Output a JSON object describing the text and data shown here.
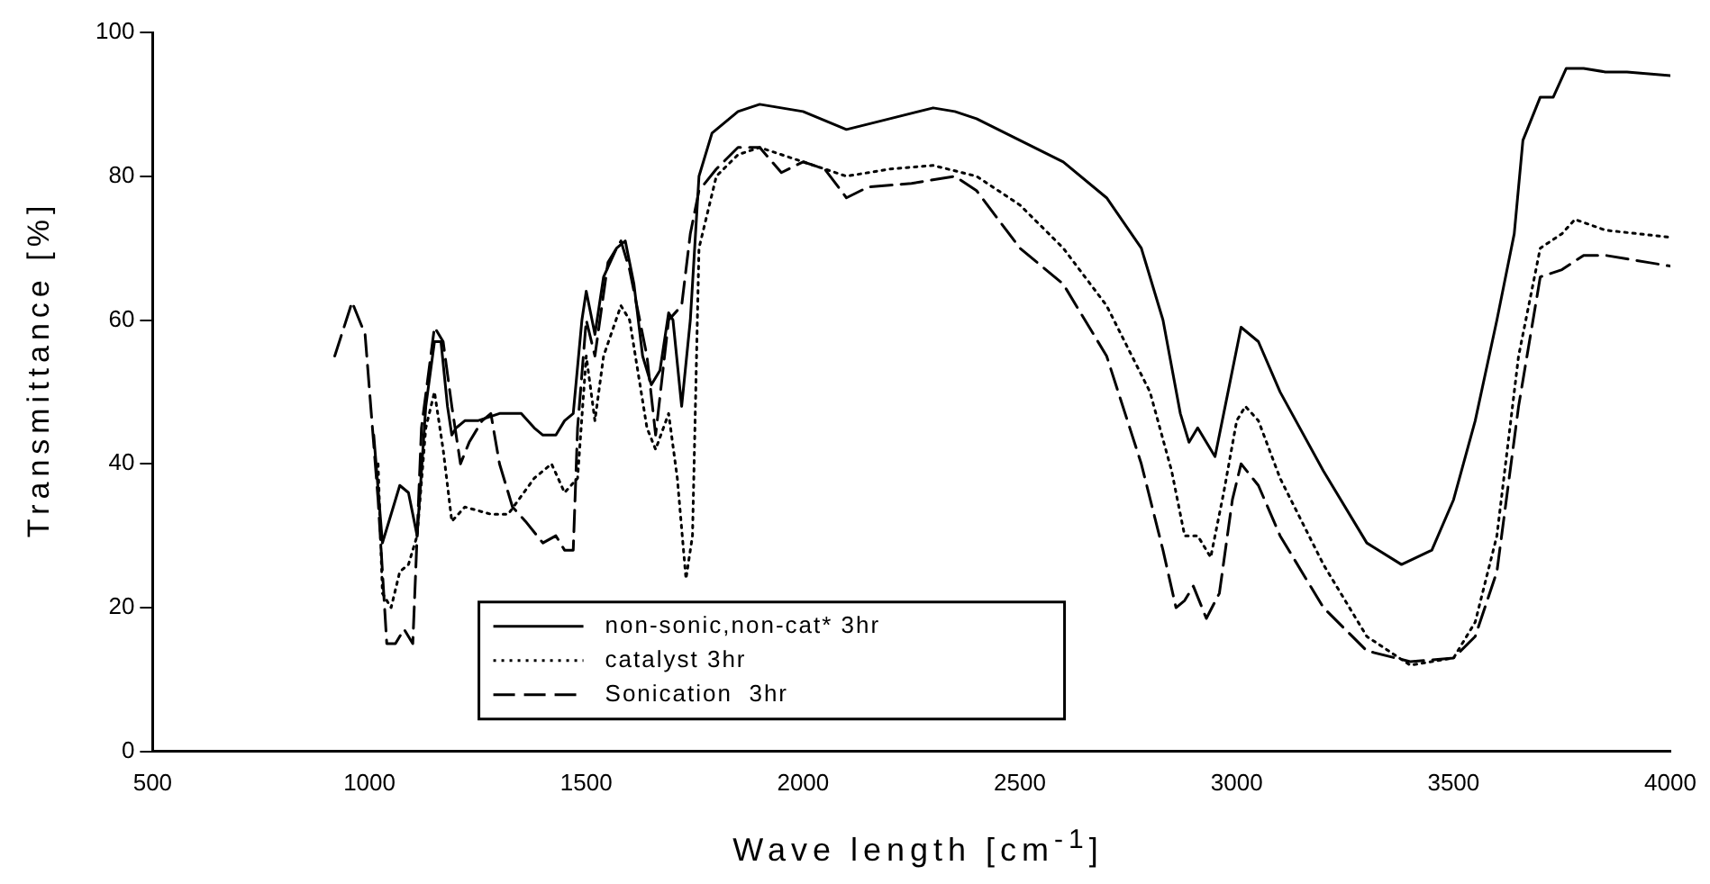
{
  "chart_data": {
    "type": "line",
    "xlabel": "Wave length [cm$^{-1}$]",
    "ylabel": "Transmittance [%]",
    "xlim": [
      500,
      4000
    ],
    "xticks": [
      500,
      1000,
      1500,
      2000,
      2500,
      3000,
      3500,
      4000
    ],
    "ylim": [
      0,
      100
    ],
    "yticks": [
      0,
      20,
      40,
      60,
      80,
      100
    ],
    "grid": false,
    "legend": "bottom",
    "marker": "none",
    "series": [
      {
        "name": "non-sonic,non-cat* 3hr",
        "color": "#000000",
        "line_style": "solid",
        "x": [
          1010,
          1030,
          1050,
          1070,
          1090,
          1110,
          1130,
          1150,
          1165,
          1180,
          1190,
          1200,
          1220,
          1250,
          1300,
          1350,
          1380,
          1400,
          1430,
          1450,
          1470,
          1490,
          1500,
          1520,
          1540,
          1570,
          1590,
          1610,
          1630,
          1650,
          1670,
          1690,
          1700,
          1720,
          1740,
          1760,
          1790,
          1850,
          1900,
          2000,
          2100,
          2200,
          2300,
          2350,
          2400,
          2500,
          2600,
          2700,
          2780,
          2830,
          2870,
          2890,
          2910,
          2930,
          2950,
          2980,
          3010,
          3050,
          3100,
          3200,
          3300,
          3380,
          3450,
          3500,
          3550,
          3600,
          3640,
          3660,
          3700,
          3730,
          3760,
          3800,
          3850,
          3900,
          4000
        ],
        "values": [
          44,
          29,
          33,
          37,
          36,
          30,
          48,
          57,
          57,
          48,
          44,
          45,
          46,
          46,
          47,
          47,
          45,
          44,
          44,
          46,
          47,
          60,
          64,
          58,
          66,
          70,
          71,
          65,
          55,
          51,
          53,
          61,
          60,
          48,
          60,
          80,
          86,
          89,
          90,
          89,
          86.5,
          88,
          89.5,
          89,
          88,
          85,
          82,
          77,
          70,
          60,
          47,
          43,
          45,
          43,
          41,
          50,
          59,
          57,
          50,
          39,
          29,
          26,
          28,
          35,
          46,
          60,
          72,
          85,
          91,
          91,
          95,
          95,
          94.5,
          94.5,
          94
        ]
      },
      {
        "name": "catalyst 3hr",
        "color": "#000000",
        "line_style": "dotted",
        "x": [
          1020,
          1030,
          1050,
          1070,
          1090,
          1110,
          1130,
          1150,
          1170,
          1190,
          1220,
          1280,
          1320,
          1380,
          1420,
          1450,
          1480,
          1500,
          1520,
          1540,
          1580,
          1600,
          1640,
          1660,
          1690,
          1710,
          1730,
          1745,
          1760,
          1800,
          1850,
          1900,
          2000,
          2100,
          2200,
          2300,
          2400,
          2500,
          2600,
          2700,
          2800,
          2850,
          2880,
          2910,
          2940,
          2970,
          3000,
          3020,
          3050,
          3100,
          3200,
          3300,
          3400,
          3500,
          3550,
          3600,
          3650,
          3700,
          3750,
          3780,
          3850,
          4000
        ],
        "values": [
          40,
          22,
          20,
          25,
          26,
          30,
          45,
          50,
          42,
          32,
          34,
          33,
          33,
          38,
          40,
          36,
          38,
          55,
          46,
          55,
          62,
          60,
          45,
          42,
          47,
          38,
          24,
          30,
          70,
          80,
          83,
          84,
          82,
          80,
          81,
          81.5,
          80,
          76,
          70,
          62,
          50,
          39,
          30,
          30,
          27,
          36,
          46,
          48,
          46,
          38,
          26,
          16,
          12,
          13,
          18,
          30,
          55,
          70,
          72,
          74,
          72.5,
          71.5
        ]
      },
      {
        "name": "Sonication  3hr",
        "color": "#000000",
        "line_style": "dashed",
        "x": [
          920,
          960,
          990,
          1020,
          1040,
          1060,
          1080,
          1100,
          1120,
          1150,
          1170,
          1190,
          1210,
          1230,
          1260,
          1280,
          1300,
          1330,
          1360,
          1400,
          1430,
          1450,
          1470,
          1480,
          1500,
          1520,
          1550,
          1580,
          1600,
          1640,
          1660,
          1690,
          1720,
          1740,
          1760,
          1800,
          1850,
          1900,
          1950,
          2000,
          2050,
          2100,
          2150,
          2250,
          2350,
          2400,
          2500,
          2600,
          2700,
          2780,
          2830,
          2860,
          2880,
          2900,
          2930,
          2960,
          2990,
          3010,
          3050,
          3100,
          3200,
          3300,
          3400,
          3500,
          3550,
          3600,
          3650,
          3700,
          3750,
          3800,
          3850,
          3950,
          4000
        ],
        "values": [
          55,
          62.5,
          58,
          35,
          15,
          15,
          17,
          15,
          45,
          59,
          57,
          48,
          40,
          43,
          46,
          47,
          40,
          34,
          32,
          29,
          30,
          28,
          28,
          45,
          60,
          55,
          68,
          71,
          67,
          55,
          44,
          60,
          62,
          72,
          78,
          81,
          84,
          84,
          80.5,
          82,
          81,
          77,
          78.5,
          79,
          80,
          78,
          70,
          65,
          55,
          40,
          28,
          20,
          21,
          23,
          18.5,
          22,
          35,
          40,
          37,
          30,
          20,
          14,
          12.5,
          13,
          16,
          25,
          48,
          66,
          67,
          69,
          69,
          68,
          67.5
        ]
      }
    ]
  }
}
